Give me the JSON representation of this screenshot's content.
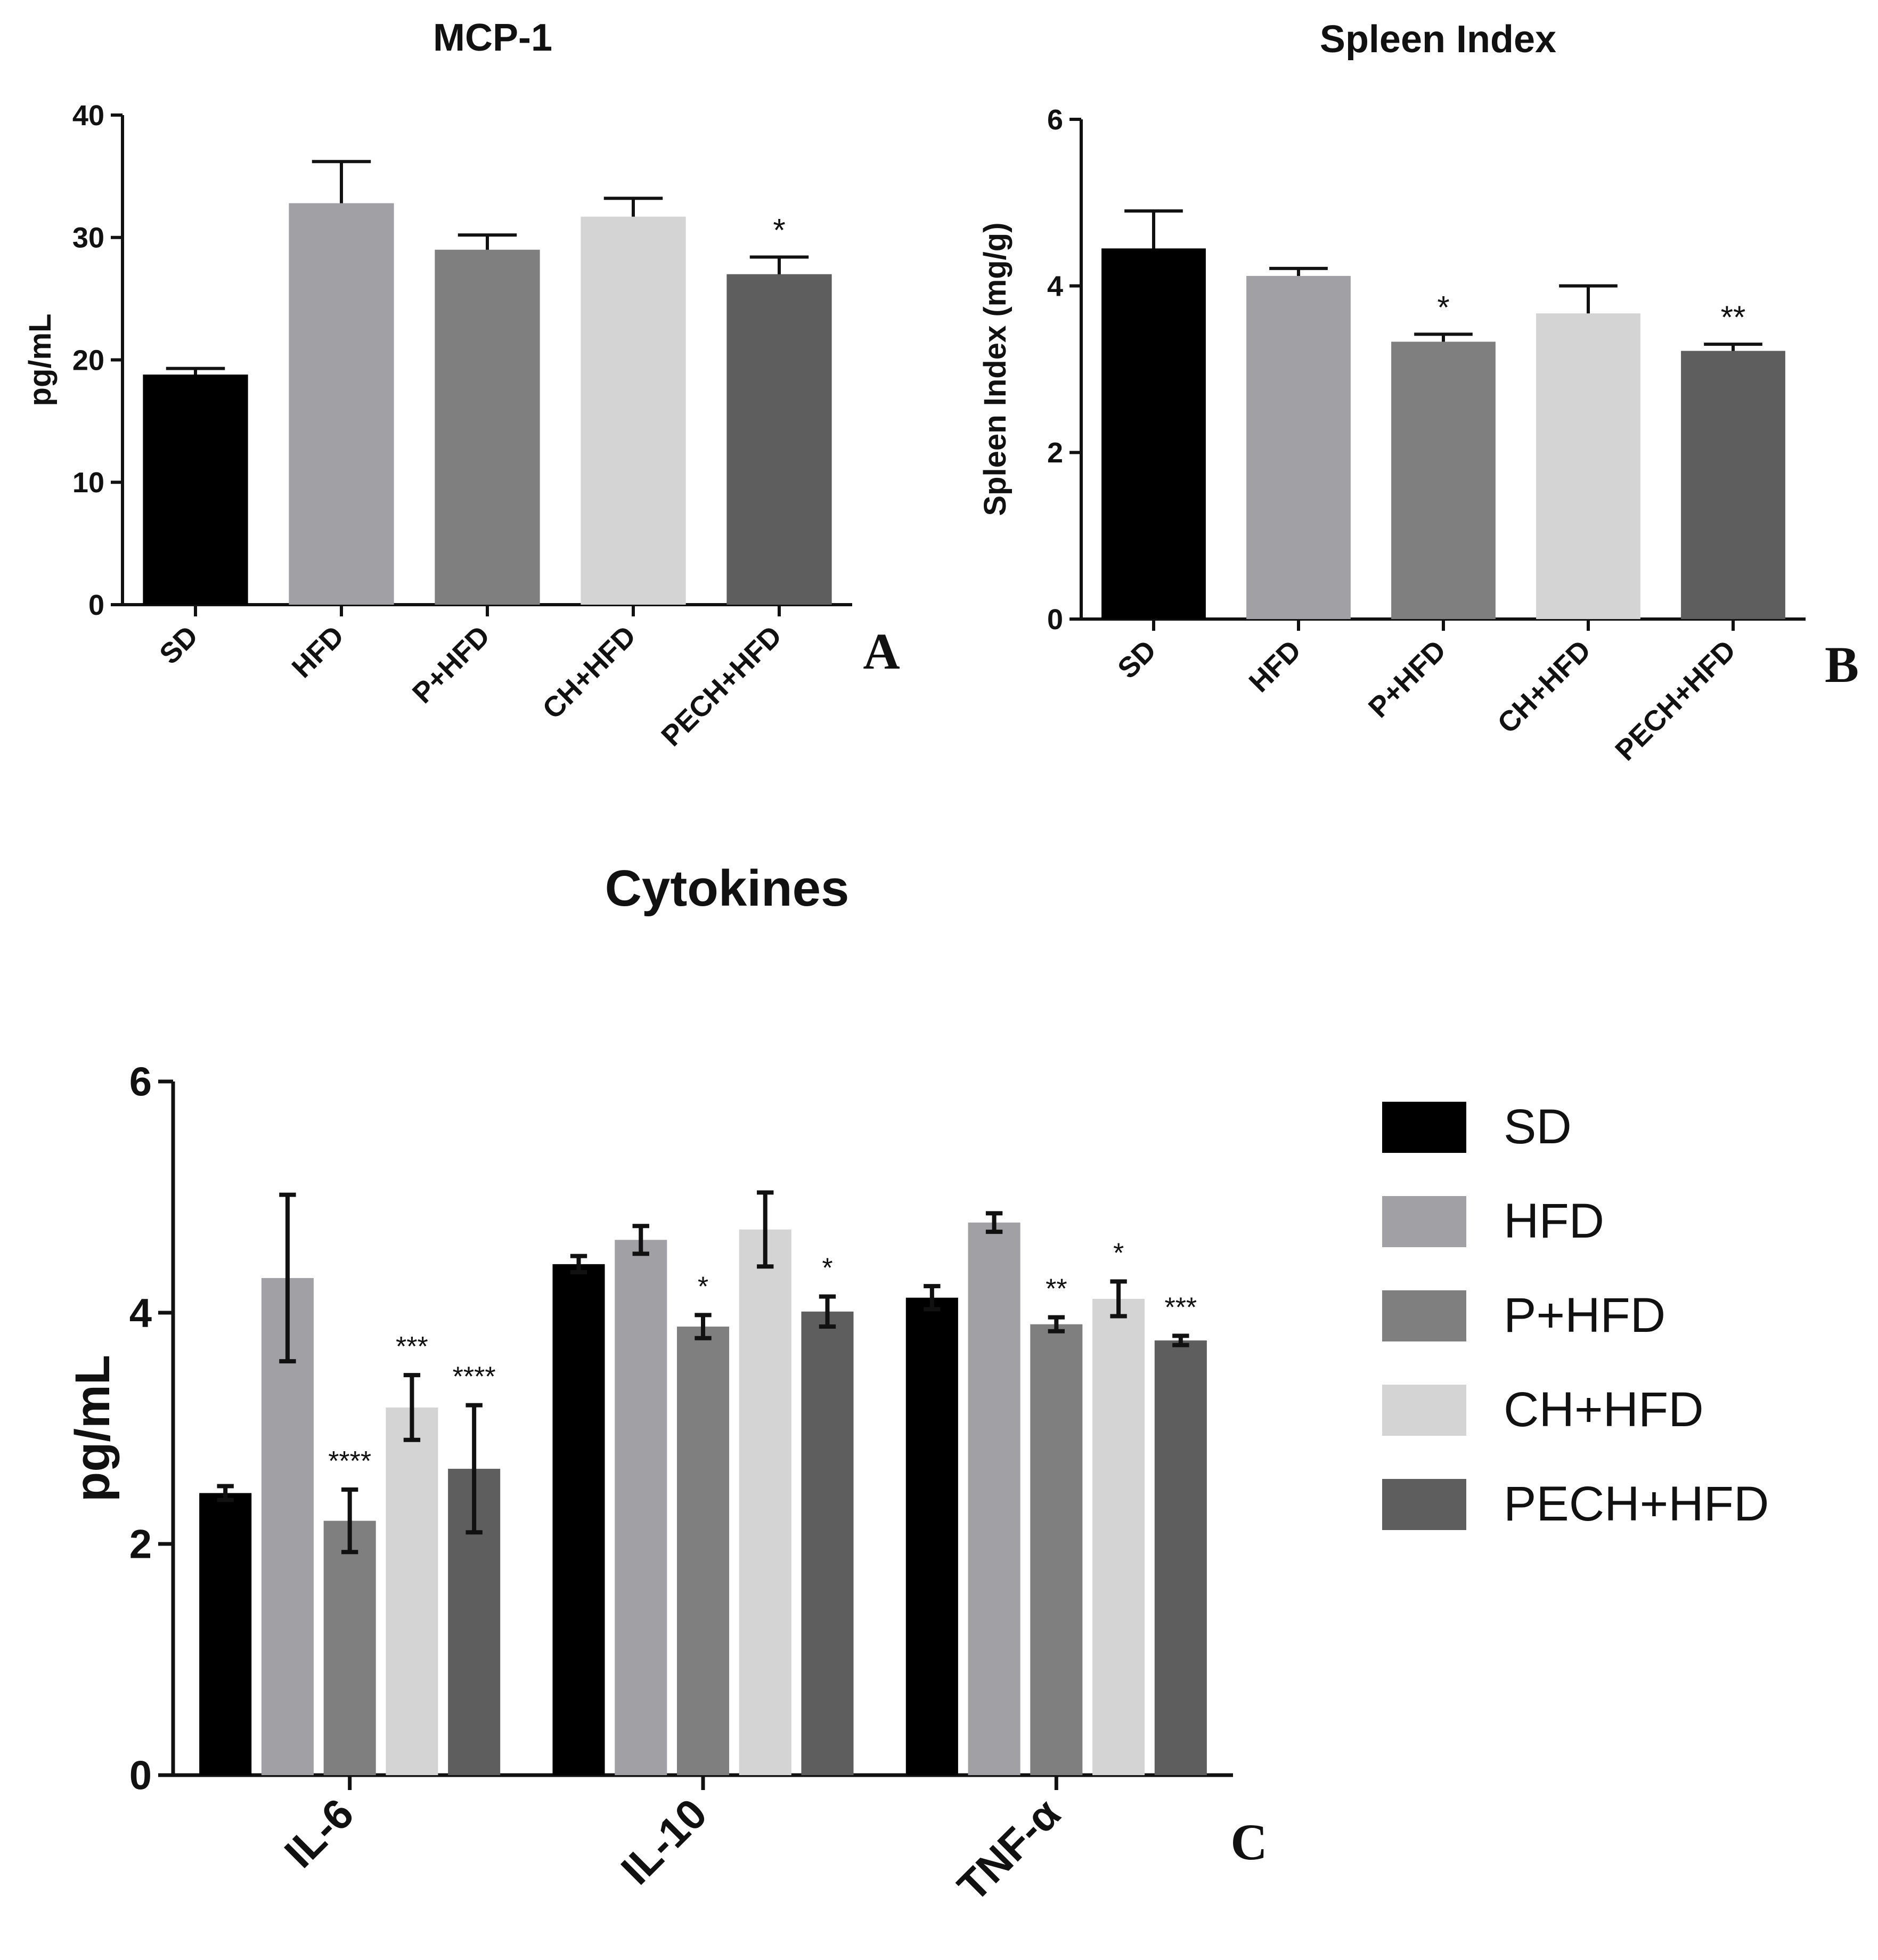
{
  "groups": [
    "SD",
    "HFD",
    "P+HFD",
    "CH+HFD",
    "PECH+HFD"
  ],
  "colors": [
    "#000000",
    "#a1a0a5",
    "#7f7f7f",
    "#d4d4d4",
    "#5e5e5e"
  ],
  "chart_data": [
    {
      "id": "A",
      "type": "bar",
      "title": "MCP-1",
      "ylabel": "pg/mL",
      "panel_label": "A",
      "categories": [
        "SD",
        "HFD",
        "P+HFD",
        "CH+HFD",
        "PECH+HFD"
      ],
      "values": [
        18.8,
        32.8,
        29.0,
        31.7,
        27.0
      ],
      "errors": [
        0.5,
        3.4,
        1.2,
        1.5,
        1.4
      ],
      "significance": [
        "",
        "",
        "",
        "",
        "*"
      ],
      "ylim": [
        0,
        40
      ],
      "yticks": [
        0,
        10,
        20,
        30,
        40
      ]
    },
    {
      "id": "B",
      "type": "bar",
      "title": "Spleen Index",
      "ylabel": "Spleen Index (mg/g)",
      "panel_label": "B",
      "categories": [
        "SD",
        "HFD",
        "P+HFD",
        "CH+HFD",
        "PECH+HFD"
      ],
      "values": [
        4.45,
        4.12,
        3.33,
        3.67,
        3.22
      ],
      "errors": [
        0.45,
        0.09,
        0.09,
        0.33,
        0.08
      ],
      "significance": [
        "",
        "",
        "*",
        "",
        "**"
      ],
      "ylim": [
        0,
        6
      ],
      "yticks": [
        0,
        2,
        4,
        6
      ]
    },
    {
      "id": "C",
      "type": "bar",
      "title": "Cytokines",
      "ylabel": "pg/mL",
      "panel_label": "C",
      "categories": [
        "IL-6",
        "IL-10",
        "TNF-α"
      ],
      "series": [
        {
          "name": "SD",
          "values": [
            2.44,
            4.42,
            4.13
          ],
          "errors": [
            0.06,
            0.07,
            0.1
          ],
          "significance": [
            "",
            "",
            ""
          ]
        },
        {
          "name": "HFD",
          "values": [
            4.3,
            4.63,
            4.78
          ],
          "errors": [
            0.72,
            0.12,
            0.08
          ],
          "significance": [
            "",
            "",
            ""
          ]
        },
        {
          "name": "P+HFD",
          "values": [
            2.2,
            3.88,
            3.9
          ],
          "errors": [
            0.27,
            0.1,
            0.06
          ],
          "significance": [
            "****",
            "*",
            "**"
          ]
        },
        {
          "name": "CH+HFD",
          "values": [
            3.18,
            4.72,
            4.12
          ],
          "errors": [
            0.28,
            0.32,
            0.15
          ],
          "significance": [
            "***",
            "",
            "*"
          ]
        },
        {
          "name": "PECH+HFD",
          "values": [
            2.65,
            4.01,
            3.76
          ],
          "errors": [
            0.55,
            0.13,
            0.04
          ],
          "significance": [
            "****",
            "*",
            "***"
          ]
        }
      ],
      "legend": [
        "SD",
        "HFD",
        "P+HFD",
        "CH+HFD",
        "PECH+HFD"
      ],
      "legend_position": "right",
      "ylim": [
        0,
        6
      ],
      "yticks": [
        0,
        2,
        4,
        6
      ]
    }
  ]
}
